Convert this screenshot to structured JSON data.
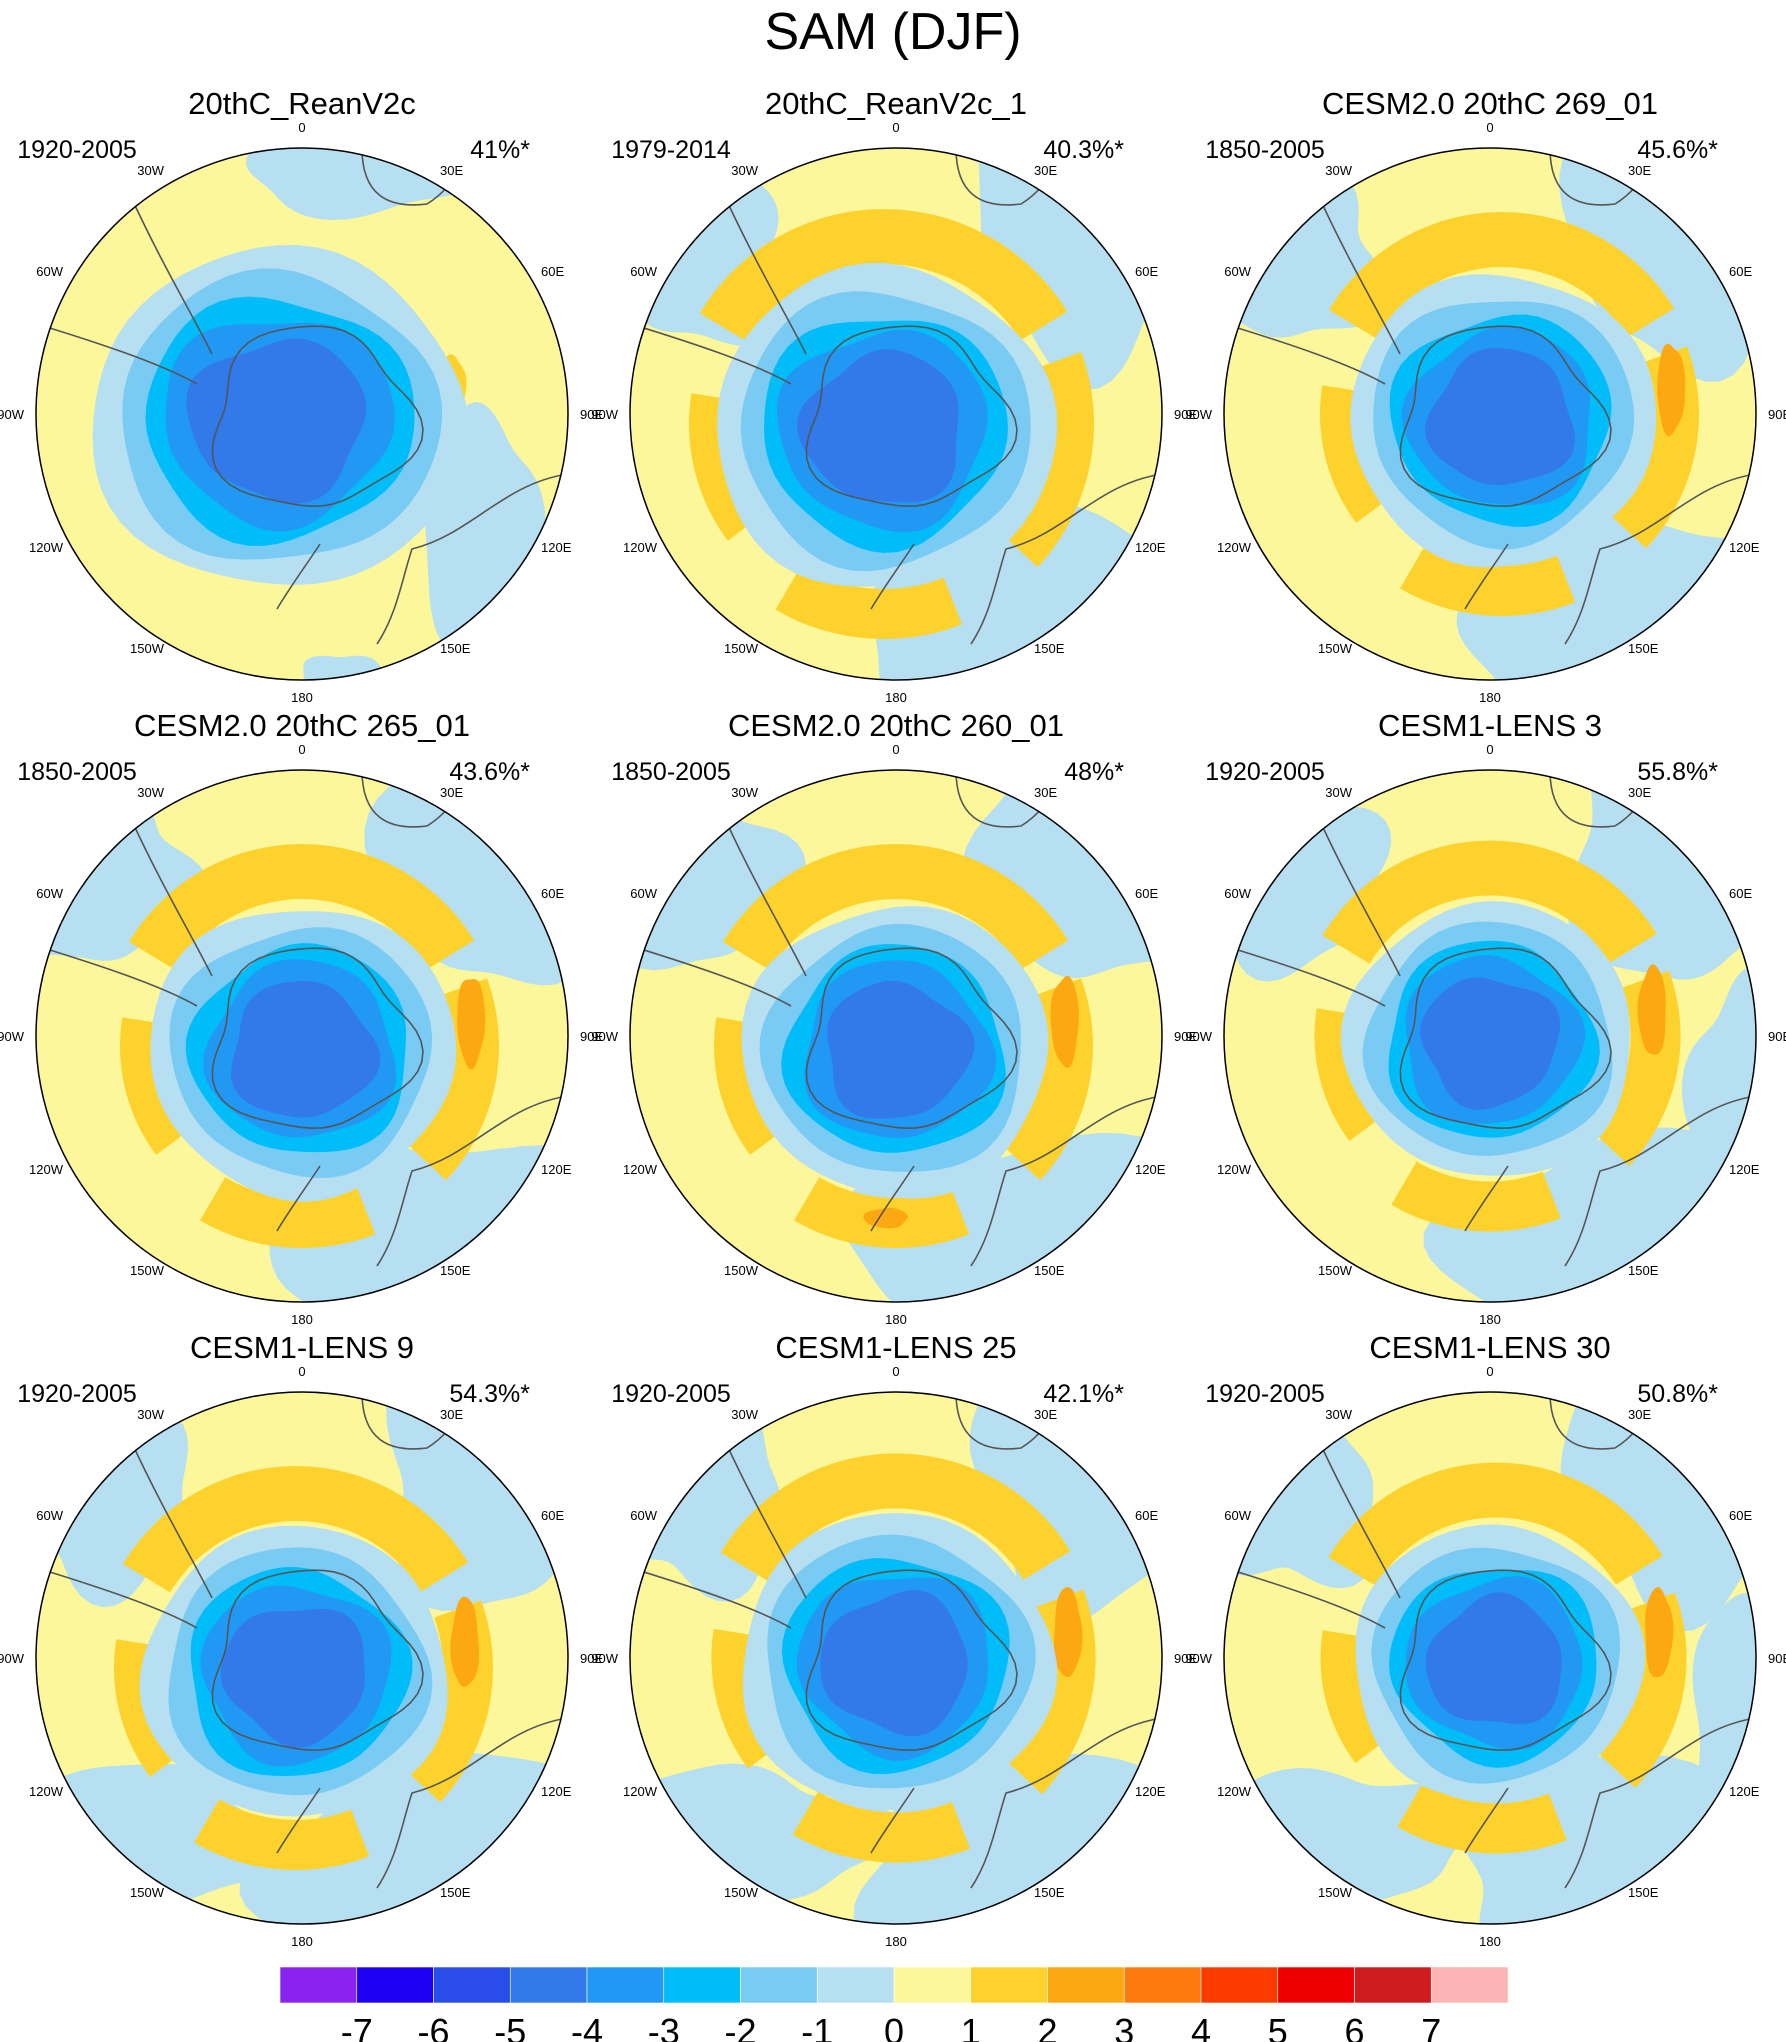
{
  "chart_data": {
    "type": "heatmap",
    "title": "SAM (DJF)",
    "projection": "south polar stereographic",
    "longitude_labels": [
      "0",
      "30E",
      "60E",
      "90E",
      "120E",
      "150E",
      "180",
      "150W",
      "120W",
      "90W",
      "60W",
      "30W"
    ],
    "panels": [
      {
        "name": "20thC_ReanV2c",
        "period": "1920-2005",
        "variance": "41%*"
      },
      {
        "name": "20thC_ReanV2c_1",
        "period": "1979-2014",
        "variance": "40.3%*"
      },
      {
        "name": "CESM2.0 20thC 269_01",
        "period": "1850-2005",
        "variance": "45.6%*"
      },
      {
        "name": "CESM2.0 20thC 265_01",
        "period": "1850-2005",
        "variance": "43.6%*"
      },
      {
        "name": "CESM2.0 20thC 260_01",
        "period": "1850-2005",
        "variance": "48%*"
      },
      {
        "name": "CESM1-LENS 3",
        "period": "1920-2005",
        "variance": "55.8%*"
      },
      {
        "name": "CESM1-LENS 9",
        "period": "1920-2005",
        "variance": "54.3%*"
      },
      {
        "name": "CESM1-LENS 25",
        "period": "1920-2005",
        "variance": "42.1%*"
      },
      {
        "name": "CESM1-LENS 30",
        "period": "1920-2005",
        "variance": "50.8%*"
      }
    ],
    "colorbar": {
      "labels": [
        "-7",
        "-6",
        "-5",
        "-4",
        "-3",
        "-2",
        "-1",
        "0",
        "1",
        "2",
        "3",
        "4",
        "5",
        "6",
        "7"
      ],
      "colors": [
        "#8a23f0",
        "#1e00f5",
        "#2a4ce8",
        "#3279ea",
        "#2199f4",
        "#00bdfa",
        "#79cbf4",
        "#b6dff1",
        "#fcf79b",
        "#fdd22c",
        "#fba812",
        "#fd7a0c",
        "#fd3a00",
        "#ee0000",
        "#cf1b1b",
        "#fcb4b4"
      ]
    }
  }
}
